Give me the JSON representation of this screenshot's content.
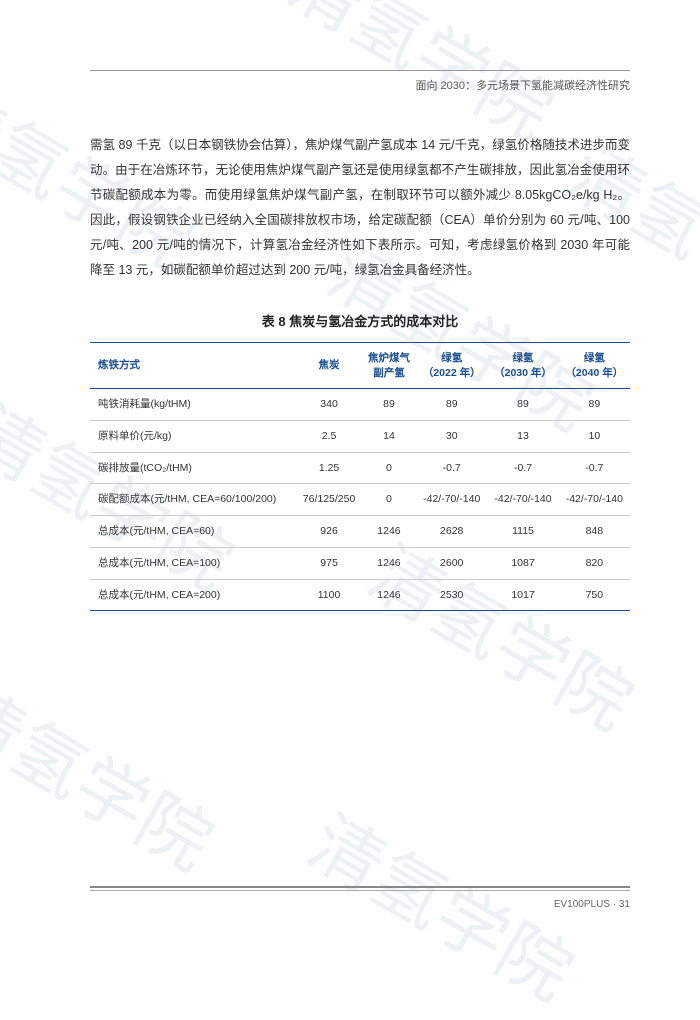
{
  "header": {
    "title": "面向 2030：多元场景下氢能减碳经济性研究"
  },
  "paragraph": "需氢 89 千克（以日本钢铁协会估算），焦炉煤气副产氢成本 14 元/千克，绿氢价格随技术进步而变动。由于在冶炼环节，无论使用焦炉煤气副产氢还是使用绿氢都不产生碳排放，因此氢冶金使用环节碳配额成本为零。而使用绿氢焦炉煤气副产氢，在制取环节可以额外减少 8.05kgCO₂e/kg H₂。因此，假设钢铁企业已经纳入全国碳排放权市场，给定碳配额（CEA）单价分别为 60 元/吨、100 元/吨、200 元/吨的情况下，计算氢冶金经济性如下表所示。可知，考虑绿氢价格到 2030 年可能降至 13 元，如碳配额单价超过达到 200 元/吨，绿氢冶金具备经济性。",
  "table": {
    "caption": "表 8 焦炭与氢冶金方式的成本对比",
    "columns": [
      "炼铁方式",
      "焦炭",
      "焦炉煤气\n副产氢",
      "绿氢\n（2022 年）",
      "绿氢\n（2030 年）",
      "绿氢\n（2040 年）"
    ],
    "rows": [
      [
        "吨铁消耗量(kg/tHM)",
        "340",
        "89",
        "89",
        "89",
        "89"
      ],
      [
        "原料单价(元/kg)",
        "2.5",
        "14",
        "30",
        "13",
        "10"
      ],
      [
        "碳排放量(tCO₂/tHM)",
        "1.25",
        "0",
        "-0.7",
        "-0.7",
        "-0.7"
      ],
      [
        "碳配额成本(元/tHM, CEA=60/100/200)",
        "76/125/250",
        "0",
        "-42/-70/-140",
        "-42/-70/-140",
        "-42/-70/-140"
      ],
      [
        "总成本(元/tHM, CEA=60)",
        "926",
        "1246",
        "2628",
        "1115",
        "848"
      ],
      [
        "总成本(元/tHM, CEA=100)",
        "975",
        "1246",
        "2600",
        "1087",
        "820"
      ],
      [
        "总成本(元/tHM, CEA=200)",
        "1100",
        "1246",
        "2530",
        "1017",
        "750"
      ]
    ]
  },
  "footer": {
    "text": "EV100PLUS · 31"
  },
  "watermark_text": "清氢学院"
}
